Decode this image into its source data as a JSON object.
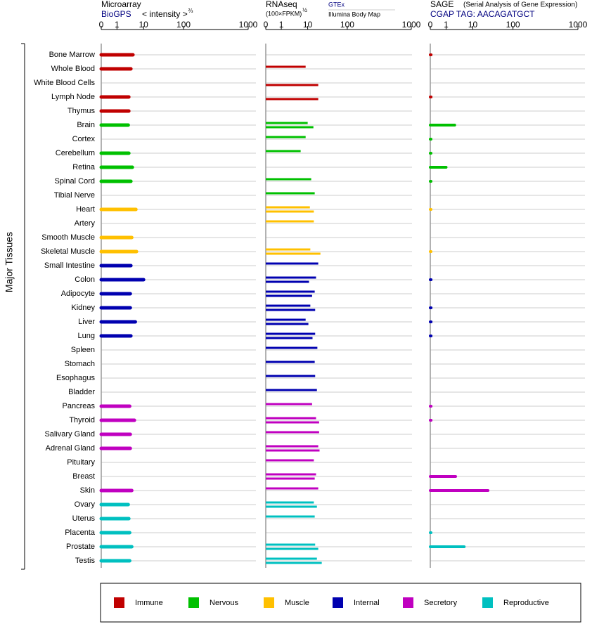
{
  "chart_data": [
    {
      "type": "bar",
      "title": "Microarray",
      "subtitle": "BioGPS",
      "axis_label": "< intensity >",
      "axis_label_exponent": "⅔",
      "y_label": "Major Tissues",
      "categories": [
        "Bone Marrow",
        "Whole Blood",
        "White Blood Cells",
        "Lymph Node",
        "Thymus",
        "Brain",
        "Cortex",
        "Cerebellum",
        "Retina",
        "Spinal Cord",
        "Tibial Nerve",
        "Heart",
        "Artery",
        "Smooth Muscle",
        "Skeletal Muscle",
        "Small Intestine",
        "Colon",
        "Adipocyte",
        "Kidney",
        "Liver",
        "Lung",
        "Spleen",
        "Stomach",
        "Esophagus",
        "Bladder",
        "Pancreas",
        "Thyroid",
        "Salivary Gland",
        "Adrenal Gland",
        "Pituitary",
        "Breast",
        "Skin",
        "Ovary",
        "Uterus",
        "Placenta",
        "Prostate",
        "Testis"
      ],
      "category_groups": [
        "Immune",
        "Immune",
        "Immune",
        "Immune",
        "Immune",
        "Nervous",
        "Nervous",
        "Nervous",
        "Nervous",
        "Nervous",
        "Nervous",
        "Muscle",
        "Muscle",
        "Muscle",
        "Muscle",
        "Internal",
        "Internal",
        "Internal",
        "Internal",
        "Internal",
        "Internal",
        "Internal",
        "Internal",
        "Internal",
        "Internal",
        "Secretory",
        "Secretory",
        "Secretory",
        "Secretory",
        "Secretory",
        "Secretory",
        "Secretory",
        "Reproductive",
        "Reproductive",
        "Reproductive",
        "Reproductive",
        "Reproductive"
      ],
      "legend": [
        {
          "name": "Immune",
          "color": "#c00000"
        },
        {
          "name": "Nervous",
          "color": "#00c000"
        },
        {
          "name": "Muscle",
          "color": "#ffc000"
        },
        {
          "name": "Internal",
          "color": "#0000b0"
        },
        {
          "name": "Secretory",
          "color": "#c000c0"
        },
        {
          "name": "Reproductive",
          "color": "#00c0c0"
        }
      ],
      "series": [
        {
          "values": [
            6.4,
            5.7,
            null,
            5.0,
            5.0,
            4.8,
            null,
            5.0,
            6.2,
            5.7,
            null,
            7.4,
            null,
            6.0,
            7.6,
            5.7,
            10,
            5.5,
            5.5,
            7.2,
            5.7,
            null,
            null,
            null,
            null,
            5.3,
            6.9,
            5.5,
            5.5,
            null,
            null,
            6.0,
            4.8,
            5.0,
            5.3,
            6.0,
            5.3
          ]
        }
      ],
      "xlim": [
        0,
        1000
      ],
      "xticks": [
        0,
        1,
        10,
        100,
        1000
      ]
    },
    {
      "type": "bar",
      "title": "RNAseq",
      "axis_label": "(100×FPKM)",
      "axis_label_exponent": "½",
      "series": [
        {
          "name": "GTEx",
          "values": [
            null,
            9.3,
            null,
            null,
            null,
            10,
            9.3,
            7.6,
            null,
            18,
            26,
            15,
            24,
            null,
            16,
            34,
            29,
            26,
            16,
            9.3,
            27,
            32,
            26,
            27,
            31,
            20,
            29,
            36,
            34,
            24,
            29,
            34,
            24,
            26,
            null,
            27,
            31
          ]
        },
        {
          "name": "Illumina Body Map",
          "values": [
            null,
            null,
            34,
            34,
            null,
            23,
            null,
            null,
            null,
            null,
            null,
            24,
            null,
            null,
            39,
            null,
            13,
            20,
            27,
            11.6,
            21,
            null,
            null,
            null,
            null,
            null,
            36,
            null,
            37,
            null,
            26,
            null,
            31,
            null,
            null,
            34,
            42
          ]
        }
      ],
      "xlim": [
        0,
        1000
      ],
      "xticks": [
        0,
        1,
        10,
        100,
        1000
      ]
    },
    {
      "type": "bar",
      "title": "SAGE",
      "note": "(Serial Analysis of Gene Expression)",
      "subtitle": "CGAP TAG: AACAGATGCT",
      "series": [
        {
          "values": [
            0.05,
            null,
            null,
            0.05,
            null,
            3.9,
            0.02,
            0.02,
            1,
            0.02,
            null,
            0.01,
            null,
            null,
            0.01,
            null,
            0.05,
            null,
            0.05,
            0.05,
            0.05,
            null,
            null,
            null,
            null,
            0.05,
            0.05,
            null,
            null,
            null,
            4.2,
            44,
            null,
            null,
            0.02,
            7.1,
            null
          ]
        }
      ],
      "xlim": [
        0,
        1000
      ],
      "xticks": [
        0,
        1,
        10,
        100,
        1000
      ]
    }
  ]
}
